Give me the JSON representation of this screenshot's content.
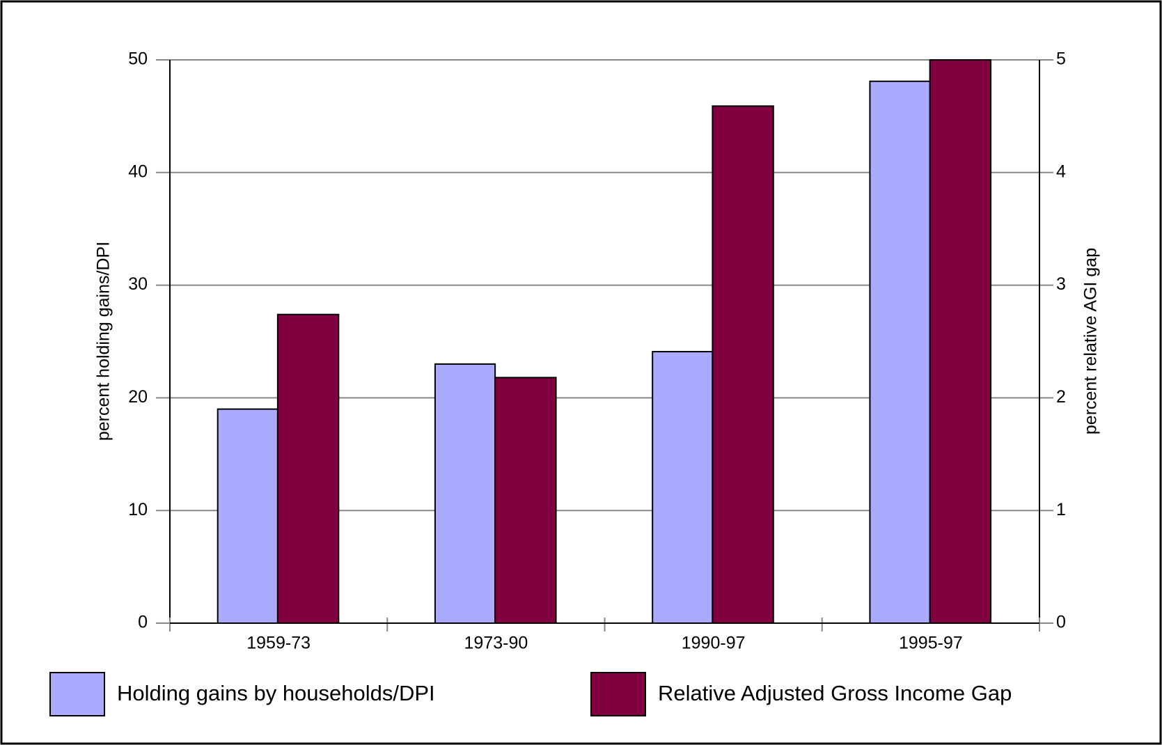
{
  "chart_data": {
    "type": "bar",
    "categories": [
      "1959-73",
      "1973-90",
      "1990-97",
      "1995-97"
    ],
    "series": [
      {
        "name": "Holding gains by households/DPI",
        "color": "#aaaaff",
        "values": [
          19,
          23,
          24.1,
          48.1
        ]
      },
      {
        "name": "Relative Adjusted Gross Income Gap",
        "color": "#800040",
        "values": [
          2.74,
          2.18,
          4.59,
          5.0
        ],
        "axis": "y2"
      }
    ],
    "y_label": "percent holding gains/DPI",
    "y2_label": "percent relative AGI gap",
    "ylim": [
      0,
      50
    ],
    "yticks": [
      0,
      10,
      20,
      30,
      40,
      50
    ],
    "y2lim": [
      0,
      5
    ],
    "y2ticks": [
      0,
      1,
      2,
      3,
      4,
      5
    ],
    "grid": true
  }
}
